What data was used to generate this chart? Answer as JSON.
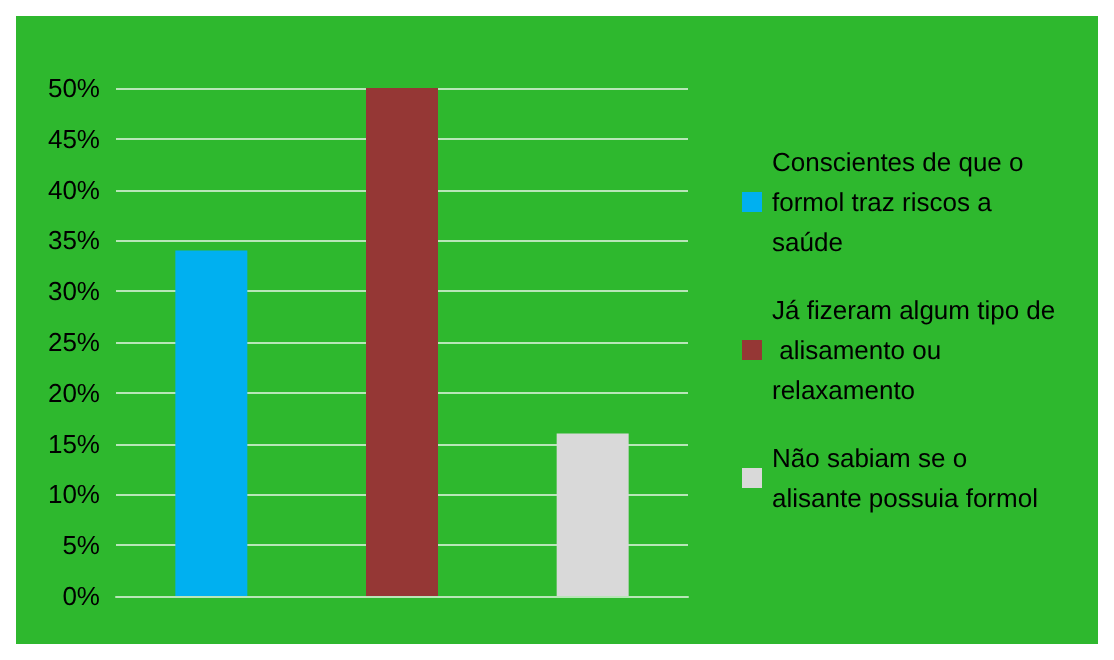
{
  "chart_data": {
    "type": "bar",
    "categories": [
      null,
      null,
      null
    ],
    "series": [
      {
        "name": "Conscientes de que o formol traz riscos a saúde",
        "color": "#00b0f0",
        "values": [
          34,
          null,
          null
        ]
      },
      {
        "name": "Já fizeram algum tipo de alisamento ou relaxamento",
        "color": "#953735",
        "values": [
          null,
          50,
          null
        ]
      },
      {
        "name": "Não sabiam se o alisante possuia formol",
        "color": "#d9d9d9",
        "values": [
          null,
          null,
          16
        ]
      }
    ],
    "ylim": [
      0,
      50
    ],
    "yticks": [
      {
        "value": 0,
        "label": "0%"
      },
      {
        "value": 5,
        "label": "5%"
      },
      {
        "value": 10,
        "label": "10%"
      },
      {
        "value": 15,
        "label": "15%"
      },
      {
        "value": 20,
        "label": "20%"
      },
      {
        "value": 25,
        "label": "25%"
      },
      {
        "value": 30,
        "label": "30%"
      },
      {
        "value": 35,
        "label": "35%"
      },
      {
        "value": 40,
        "label": "40%"
      },
      {
        "value": 45,
        "label": "45%"
      },
      {
        "value": 50,
        "label": "50%"
      }
    ],
    "grid": "y",
    "legend": "right"
  }
}
